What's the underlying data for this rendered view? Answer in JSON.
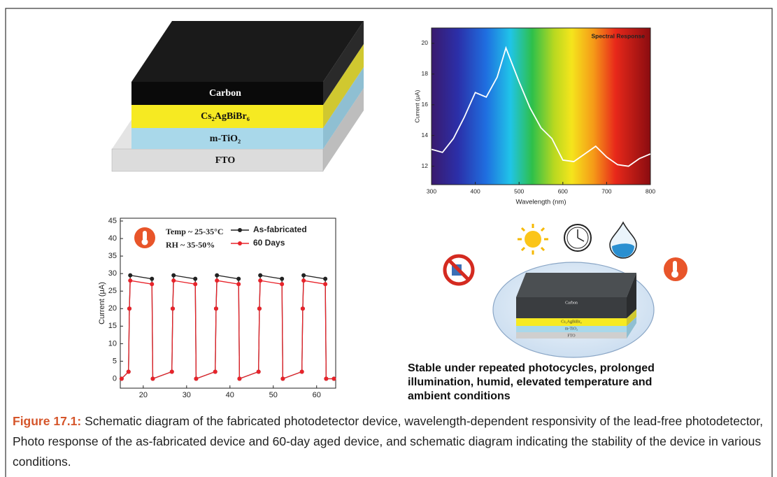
{
  "device": {
    "layers": [
      "Carbon",
      "Cs₂AgBiBr₆",
      "m-TiO₂",
      "FTO"
    ]
  },
  "chart_data": [
    {
      "type": "line",
      "title": "Spectral Response",
      "x_label": "Wavelength (nm)",
      "y_label": "Current (μA)",
      "x": [
        300,
        325,
        350,
        375,
        400,
        425,
        450,
        470,
        500,
        525,
        550,
        575,
        600,
        625,
        650,
        675,
        700,
        725,
        750,
        775,
        800
      ],
      "values": [
        13.1,
        12.9,
        13.8,
        15.2,
        16.8,
        16.5,
        17.8,
        19.7,
        17.5,
        15.8,
        14.5,
        13.8,
        12.4,
        12.3,
        12.8,
        13.3,
        12.6,
        12.1,
        12.0,
        12.5,
        12.8
      ],
      "color": "#ffffff",
      "xlim": [
        300,
        800
      ],
      "ylim": [
        10.8,
        21
      ],
      "xticks": [
        300,
        400,
        500,
        600,
        700,
        800
      ],
      "yticks": [
        12,
        14,
        16,
        18,
        20
      ]
    },
    {
      "type": "line",
      "y_label": "Current (μA)",
      "annotations": [
        "Temp ~ 25-35°C",
        "RH ~ 35-50%"
      ],
      "x": [
        15,
        16.6,
        16.8,
        17,
        22,
        22.2,
        26.6,
        26.8,
        27,
        32,
        32.2,
        36.6,
        36.8,
        37,
        42,
        42.2,
        46.6,
        46.8,
        47,
        52,
        52.2,
        56.6,
        56.8,
        57,
        62,
        62.2,
        64
      ],
      "series": [
        {
          "name": "As-fabricated",
          "color": "#222222",
          "values": [
            0,
            2,
            20,
            29.5,
            28.5,
            0,
            2,
            20,
            29.5,
            28.5,
            0,
            2,
            20,
            29.5,
            28.5,
            0,
            2,
            20,
            29.5,
            28.5,
            0,
            2,
            20,
            29.5,
            28.5,
            0,
            0
          ]
        },
        {
          "name": "60 Days",
          "color": "#e8232a",
          "values": [
            0,
            2,
            20,
            28,
            27,
            0,
            2,
            20,
            28,
            27,
            0,
            2,
            20,
            28,
            27,
            0,
            2,
            20,
            28,
            27,
            0,
            2,
            20,
            28,
            27,
            0,
            0
          ]
        }
      ],
      "markers": true,
      "xlim": [
        14.7,
        64.4
      ],
      "ylim": [
        -2.7,
        45.8
      ],
      "xticks": [
        20,
        30,
        40,
        50,
        60
      ],
      "yticks": [
        0,
        5,
        10,
        15,
        20,
        25,
        30,
        35,
        40,
        45
      ]
    }
  ],
  "schematic": {
    "layers": [
      "Carbon",
      "Cs₂AgBiBr₆",
      "m-TiO₂",
      "FTO"
    ],
    "text": [
      "Stable under repeated photocycles, prolonged",
      "illumination, humid, elevated temperature and",
      "ambient conditions"
    ]
  },
  "caption": {
    "label": "Figure 17.1:",
    "text": "Schematic diagram of the fabricated photodetector device, wavelength-dependent responsivity of the lead-free photodetector, Photo response of the as-fabricated device and 60-day aged device, and schematic diagram indicating the stability of the device in various conditions."
  }
}
